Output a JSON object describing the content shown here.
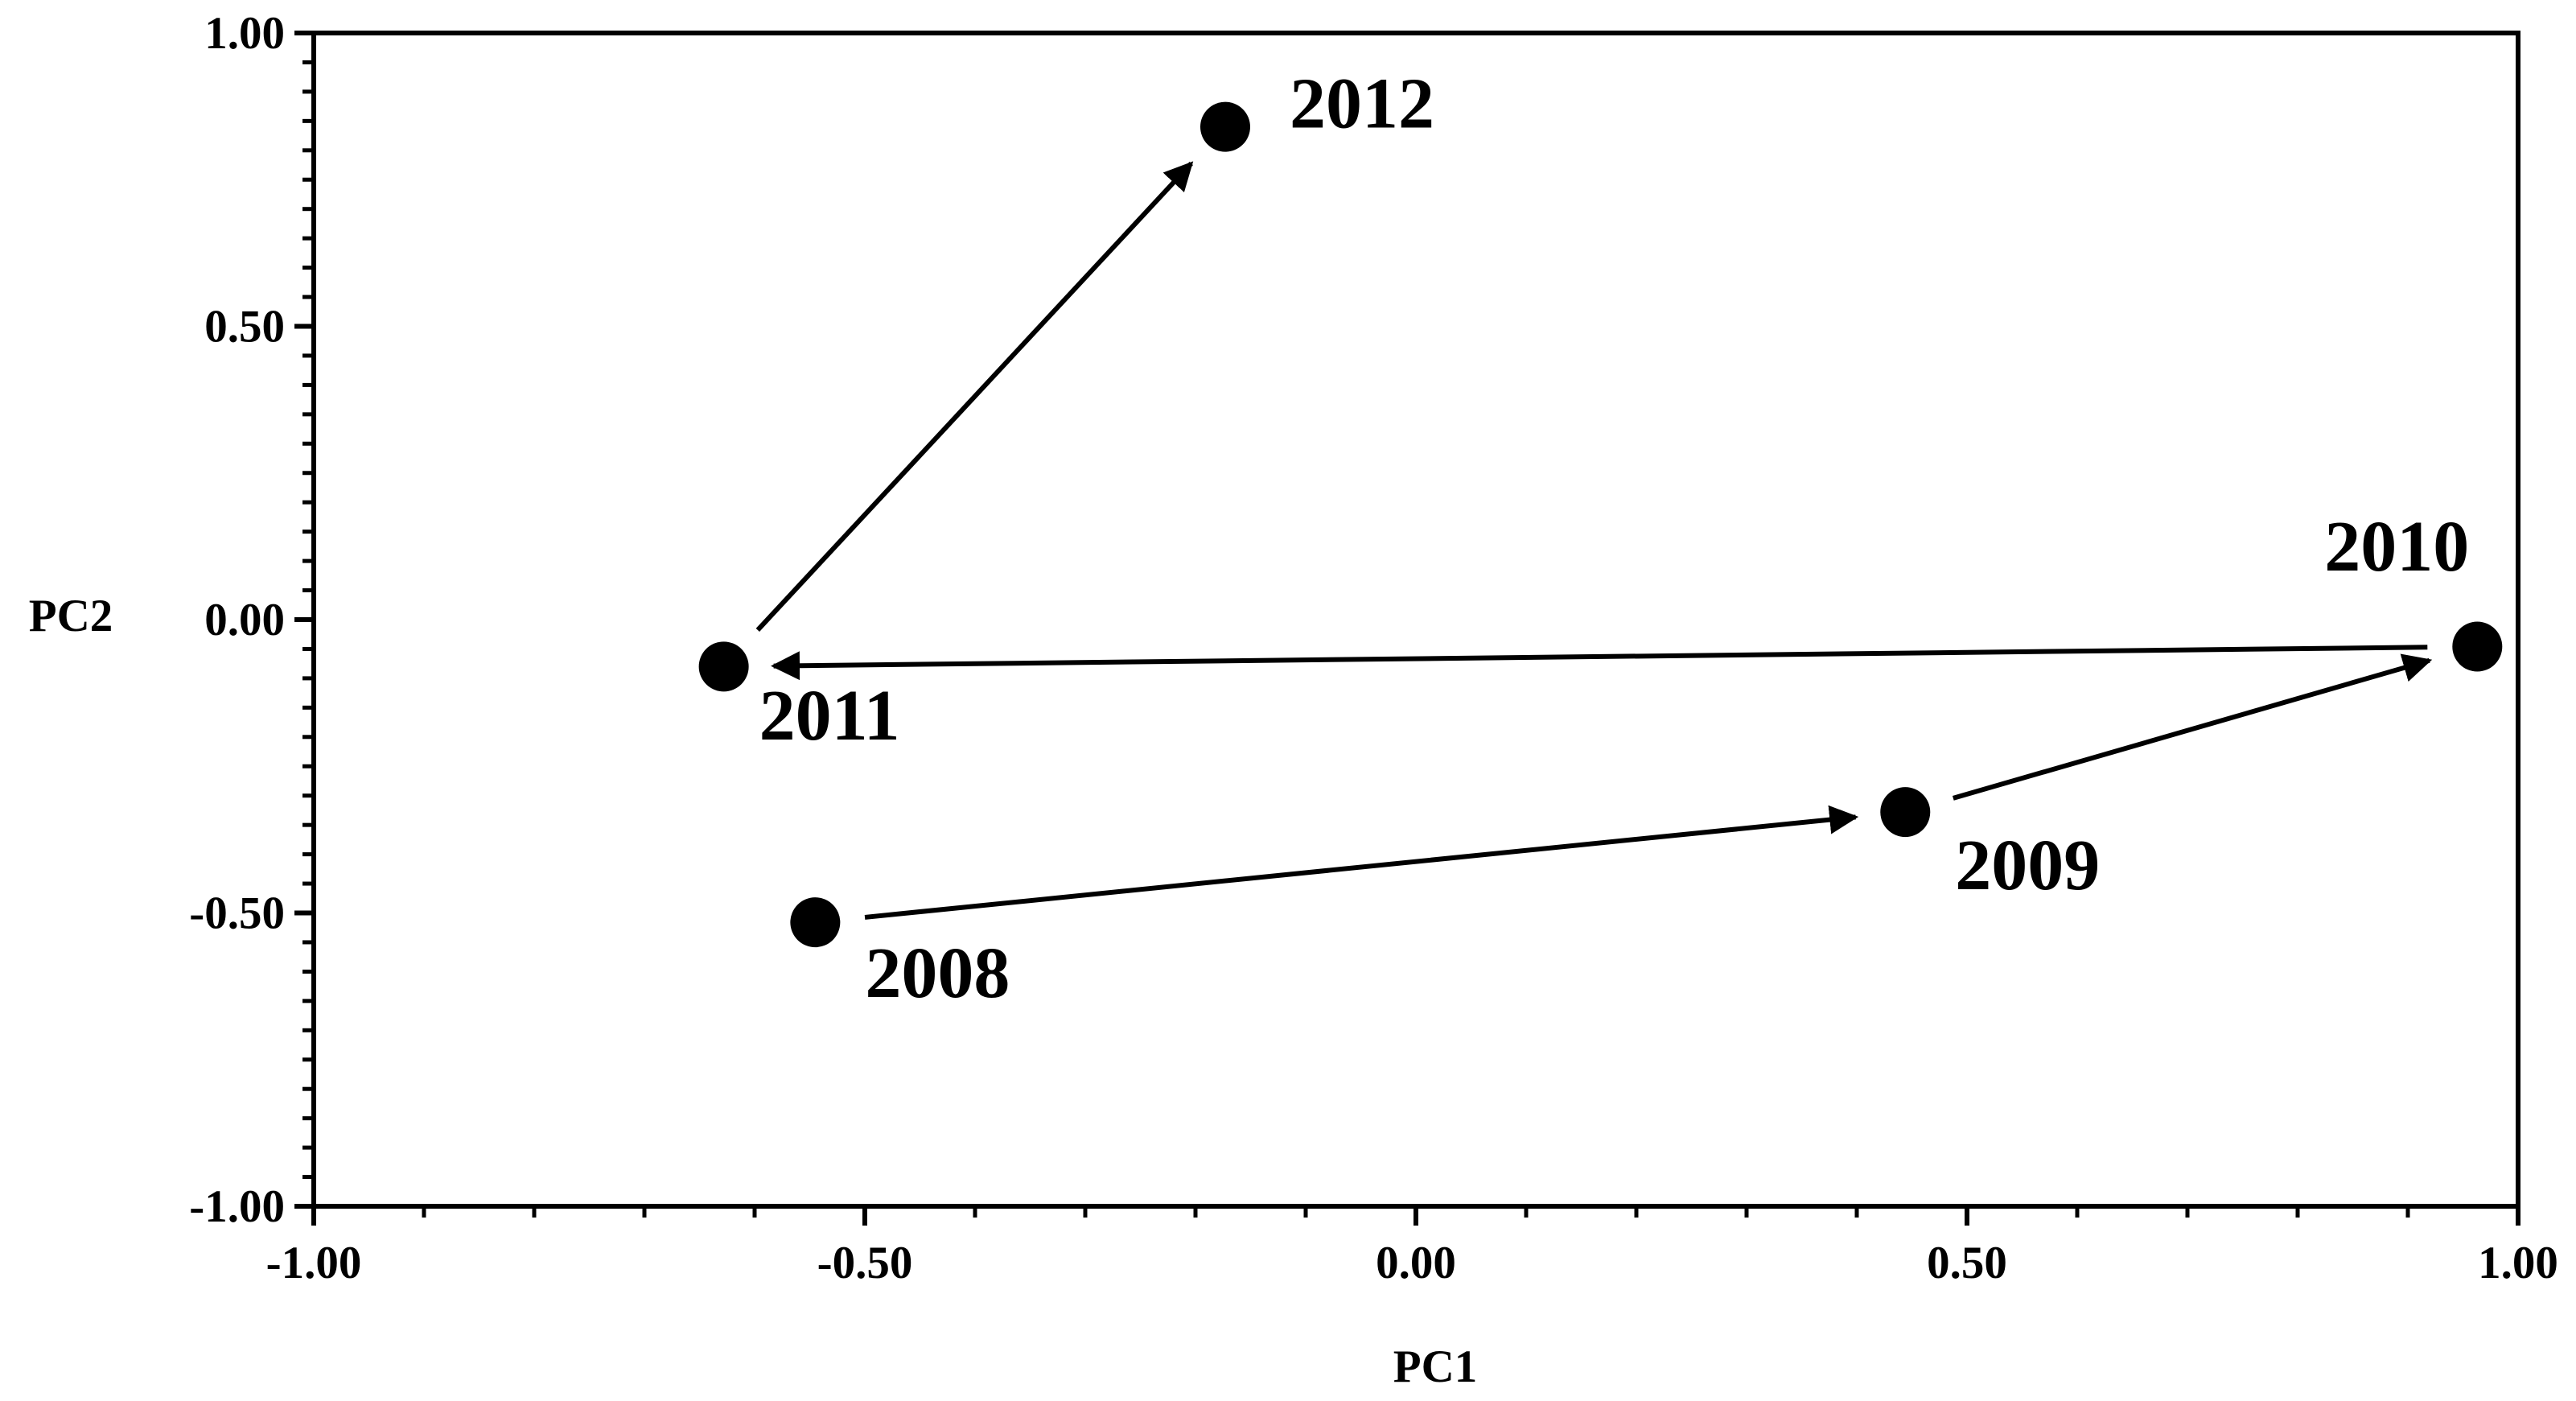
{
  "chart_data": {
    "type": "scatter",
    "xlabel": "PC1",
    "ylabel": "PC2",
    "x": [
      -0.545,
      0.444,
      0.963,
      -0.628,
      -0.173
    ],
    "y": [
      -0.516,
      -0.328,
      -0.046,
      -0.08,
      0.84
    ],
    "labels": [
      "2008",
      "2009",
      "2010",
      "2011",
      "2012"
    ],
    "color": "#000000",
    "arrows": true,
    "xlim": [
      -1,
      1
    ],
    "ylim": [
      -1,
      1
    ],
    "xticks": [
      {
        "value": -1,
        "label": "-1.00"
      },
      {
        "value": -0.5,
        "label": "-0.50"
      },
      {
        "value": 0,
        "label": "0.00"
      },
      {
        "value": 0.5,
        "label": "0.50"
      },
      {
        "value": 1,
        "label": "1.00"
      }
    ],
    "yticks": [
      {
        "value": -1,
        "label": "-1.00"
      },
      {
        "value": -0.5,
        "label": "-0.50"
      },
      {
        "value": 0,
        "label": "0.00"
      },
      {
        "value": 0.5,
        "label": "0.50"
      },
      {
        "value": 1,
        "label": "1.00"
      }
    ],
    "xminorticks": [
      -0.9,
      -0.8,
      -0.7,
      -0.6,
      -0.4,
      -0.3,
      -0.2,
      -0.1,
      0.1,
      0.2,
      0.3,
      0.4,
      0.6,
      0.7,
      0.8,
      0.9
    ],
    "yminorticks": [
      -0.95,
      -0.9,
      -0.85,
      -0.8,
      -0.75,
      -0.7,
      -0.65,
      -0.6,
      -0.55,
      -0.45,
      -0.4,
      -0.35,
      -0.3,
      -0.25,
      -0.2,
      -0.15,
      -0.1,
      -0.05,
      0.05,
      0.1,
      0.15,
      0.2,
      0.25,
      0.3,
      0.35,
      0.4,
      0.45,
      0.55,
      0.6,
      0.65,
      0.7,
      0.75,
      0.8,
      0.85,
      0.9,
      0.95
    ],
    "grid": false
  }
}
